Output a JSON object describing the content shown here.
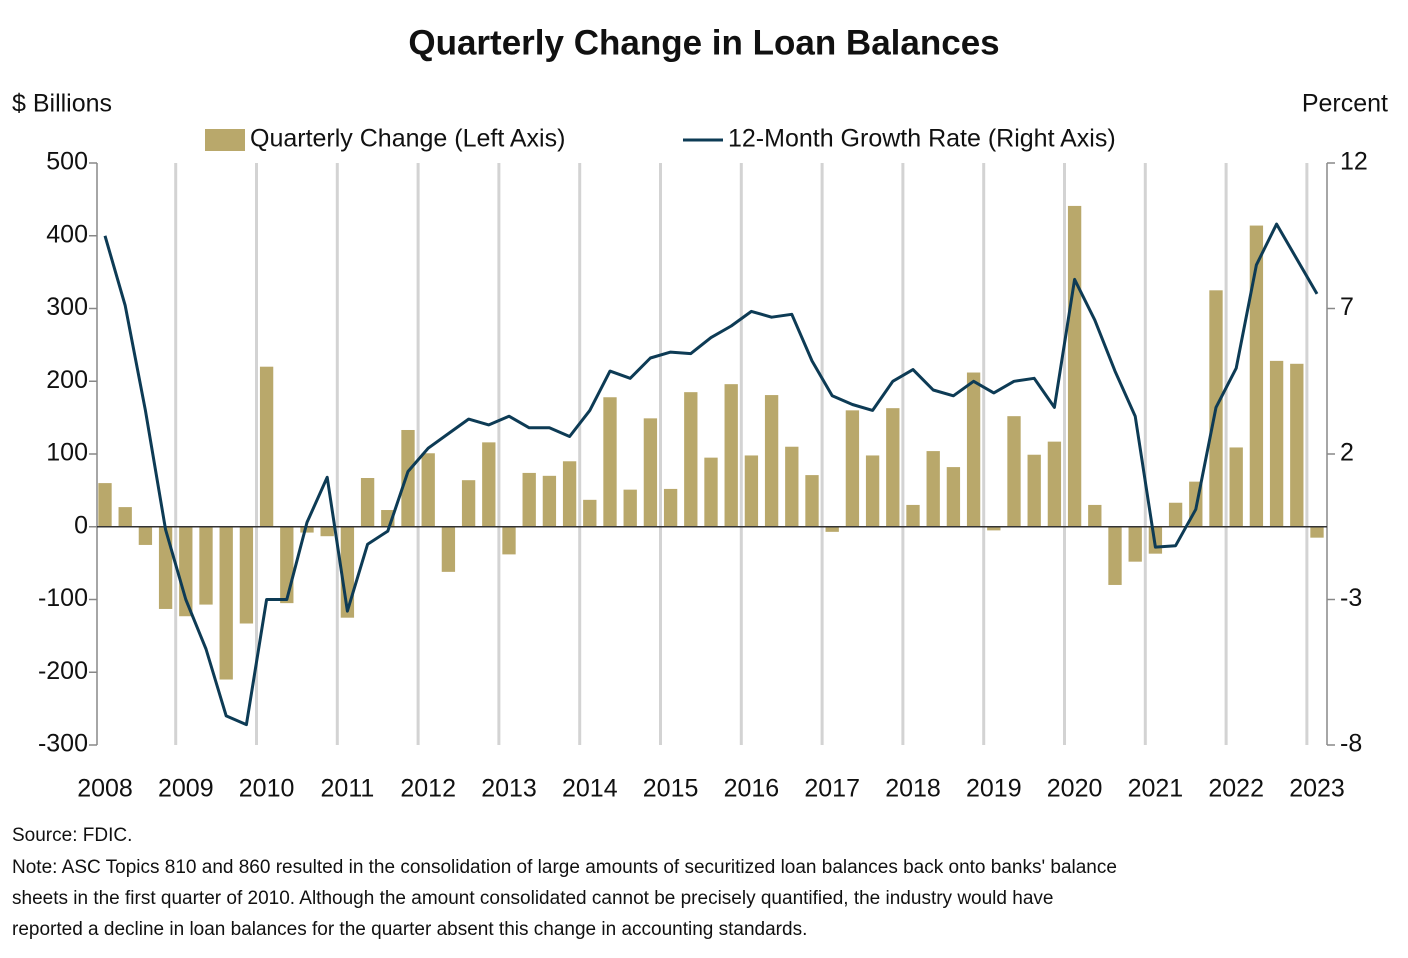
{
  "chart_data": {
    "type": "bar-line",
    "title": "Quarterly Change in Loan Balances",
    "y_label": "$ Billions",
    "y2_label": "Percent",
    "categories": [
      "2008",
      null,
      null,
      null,
      "2009",
      null,
      null,
      null,
      "2010",
      null,
      null,
      null,
      "2011",
      null,
      null,
      null,
      "2012",
      null,
      null,
      null,
      "2013",
      null,
      null,
      null,
      "2014",
      null,
      null,
      null,
      "2015",
      null,
      null,
      null,
      "2016",
      null,
      null,
      null,
      "2017",
      null,
      null,
      null,
      "2018",
      null,
      null,
      null,
      "2019",
      null,
      null,
      null,
      "2020",
      null,
      null,
      null,
      "2021",
      null,
      null,
      null,
      "2022",
      null,
      null,
      null,
      "2023"
    ],
    "series": [
      {
        "name": "Quarterly Change (Left Axis)",
        "type": "bar",
        "color": "#b9a86b",
        "values": [
          60,
          27,
          -25,
          -113,
          -123,
          -107,
          -210,
          -133,
          220,
          -105,
          -8,
          -13,
          -125,
          67,
          23,
          133,
          101,
          -62,
          64,
          116,
          -38,
          74,
          70,
          90,
          37,
          178,
          51,
          149,
          52,
          185,
          95,
          196,
          98,
          181,
          110,
          71,
          -7,
          160,
          98,
          163,
          30,
          104,
          82,
          212,
          -5,
          152,
          99,
          117,
          441,
          30,
          -80,
          -48,
          -37,
          33,
          62,
          325,
          109,
          414,
          228,
          224,
          -15
        ]
      },
      {
        "name": "12-Month Growth Rate (Right Axis)",
        "type": "line",
        "axis": "y2",
        "color": "#0d3b55",
        "values": [
          9.5,
          7.1,
          3.5,
          -0.6,
          -3.0,
          -4.7,
          -7.0,
          -7.3,
          -3.0,
          -3.0,
          -0.35,
          1.2,
          -3.4,
          -1.1,
          -0.65,
          1.4,
          2.2,
          2.7,
          3.2,
          3.0,
          3.3,
          2.9,
          2.9,
          2.6,
          3.5,
          4.85,
          4.6,
          5.3,
          5.5,
          5.45,
          6.0,
          6.4,
          6.9,
          6.7,
          6.8,
          5.2,
          4.0,
          3.7,
          3.5,
          4.5,
          4.9,
          4.2,
          4.0,
          4.5,
          4.1,
          4.5,
          4.6,
          3.6,
          8.0,
          6.6,
          4.85,
          3.3,
          -1.2,
          -1.15,
          0.1,
          3.6,
          4.95,
          8.5,
          9.9,
          8.7,
          7.5
        ]
      }
    ],
    "ylim": [
      -300,
      500
    ],
    "yticks": [
      500,
      400,
      300,
      200,
      100,
      0,
      -100,
      -200,
      -300
    ],
    "y2lim": [
      -8,
      12
    ],
    "y2ticks": [
      12,
      7,
      2,
      -3,
      -8
    ],
    "grid": true,
    "legend": "top",
    "source": "Source: FDIC.",
    "note": [
      "Note: ASC Topics 810 and 860 resulted in the consolidation of large amounts of securitized loan balances back onto banks' balance",
      "sheets in the first quarter of 2010. Although the amount consolidated cannot be precisely quantified, the industry would have",
      "reported a decline in loan balances for the quarter absent this change in accounting standards."
    ]
  }
}
